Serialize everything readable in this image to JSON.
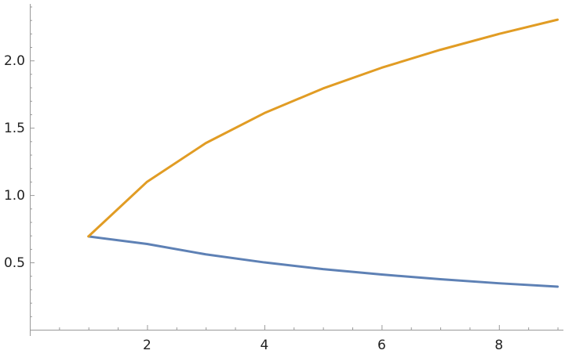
{
  "chart_data": {
    "type": "line",
    "title": "",
    "xlabel": "",
    "ylabel": "",
    "xlim": [
      0,
      9.1
    ],
    "ylim": [
      0,
      2.42
    ],
    "x_ticks": [
      2,
      4,
      6,
      8
    ],
    "x_tick_labels": [
      "2",
      "4",
      "6",
      "8"
    ],
    "x_minor_step": 0.5,
    "y_ticks": [
      0.5,
      1.0,
      1.5,
      2.0
    ],
    "y_tick_labels": [
      "0.5",
      "1.0",
      "1.5",
      "2.0"
    ],
    "y_minor_step": 0.1,
    "grid": false,
    "legend": "none",
    "series": [
      {
        "color": "#5e81b5",
        "x": [
          1,
          2,
          3,
          4,
          5,
          6,
          7,
          8,
          9
        ],
        "y": [
          0.693,
          0.637,
          0.56,
          0.5,
          0.45,
          0.41,
          0.375,
          0.345,
          0.32
        ]
      },
      {
        "color": "#e19c24",
        "x": [
          1,
          2,
          3,
          4,
          5,
          6,
          7,
          8,
          9
        ],
        "y": [
          0.693,
          1.099,
          1.386,
          1.609,
          1.792,
          1.946,
          2.079,
          2.197,
          2.303
        ]
      }
    ]
  }
}
